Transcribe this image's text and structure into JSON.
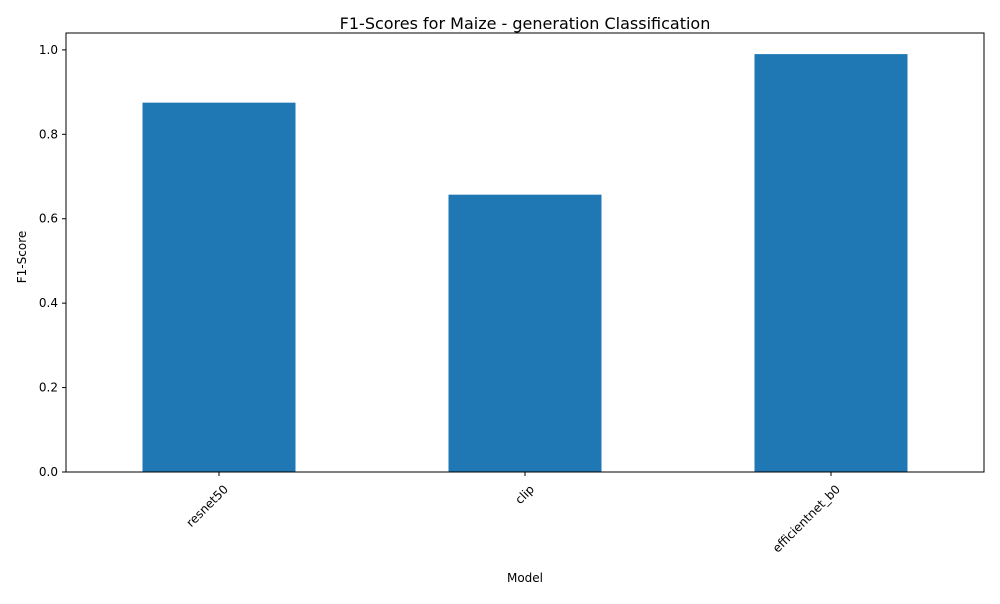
{
  "chart_data": {
    "type": "bar",
    "title": "F1-Scores for Maize - generation Classification",
    "xlabel": "Model",
    "ylabel": "F1-Score",
    "categories": [
      "resnet50",
      "clip",
      "efficientnet_b0"
    ],
    "values": [
      0.875,
      0.657,
      0.99
    ],
    "ylim": [
      0,
      1.04
    ],
    "yticks": [
      "0.0",
      "0.2",
      "0.4",
      "0.6",
      "0.8",
      "1.0"
    ],
    "x_tick_rotation_deg": 45,
    "grid": false,
    "legend": "none",
    "bar_color": "#1f77b4"
  }
}
